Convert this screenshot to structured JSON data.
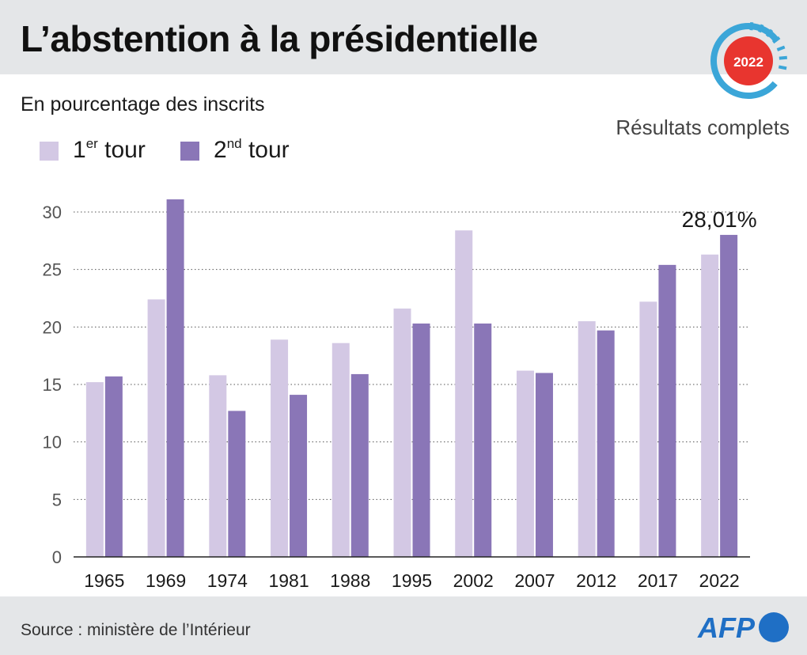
{
  "header": {
    "title": "L’abstention à la présidentielle",
    "badge_year": "2022"
  },
  "subtitle": "En pourcentage des inscrits",
  "status": "Résultats complets",
  "legend": [
    {
      "base": "1",
      "sup": "er",
      "rest": " tour",
      "color": "#d3c8e4"
    },
    {
      "base": "2",
      "sup": "nd",
      "rest": " tour",
      "color": "#8a76b7"
    }
  ],
  "colors": {
    "first_round": "#d3c8e4",
    "second_round": "#8a76b7",
    "badge_red": "#e8352f",
    "badge_ring": "#3ba6d8",
    "afp_blue": "#1f6fc5"
  },
  "chart_data": {
    "type": "bar",
    "categories": [
      "1965",
      "1969",
      "1974",
      "1981",
      "1988",
      "1995",
      "2002",
      "2007",
      "2012",
      "2017",
      "2022"
    ],
    "series": [
      {
        "name": "1er tour",
        "values": [
          15.2,
          22.4,
          15.8,
          18.9,
          18.6,
          21.6,
          28.4,
          16.2,
          20.5,
          22.2,
          26.3
        ]
      },
      {
        "name": "2nd tour",
        "values": [
          15.7,
          31.1,
          12.7,
          14.1,
          15.9,
          20.3,
          20.3,
          16.0,
          19.7,
          25.4,
          28.01
        ]
      }
    ],
    "ylim": [
      0,
      30
    ],
    "yticks": [
      0,
      5,
      10,
      15,
      20,
      25,
      30
    ],
    "grid": true,
    "annotation": {
      "text": "28,01%",
      "category": "2022",
      "series": 1
    }
  },
  "footer": {
    "source": "Source : ministère de l’Intérieur",
    "logo_text": "AFP"
  }
}
